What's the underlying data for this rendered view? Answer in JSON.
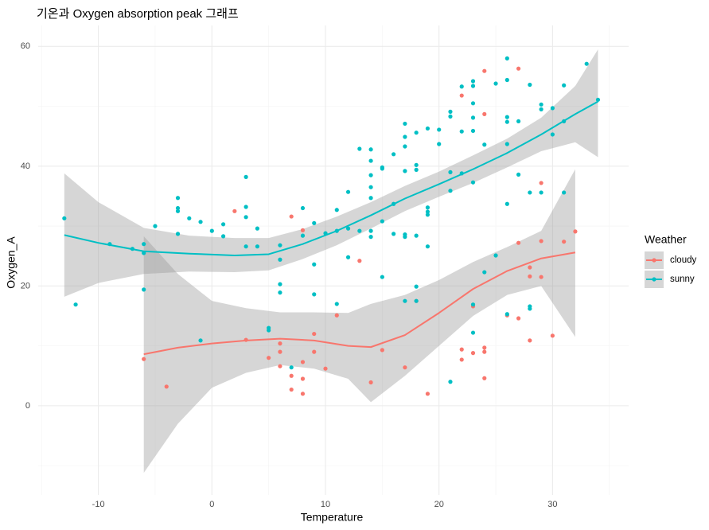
{
  "chart_data": {
    "type": "scatter",
    "title": "기온과 Oxygen absorption peak 그래프",
    "x_label": "Temperature",
    "y_label": "Oxygen_A",
    "legend_title": "Weather",
    "legend_position": "right",
    "grid": true,
    "xlim": [
      -15.3,
      36.7
    ],
    "ylim": [
      -14.9,
      63.5
    ],
    "xticks": [
      -10,
      0,
      10,
      20,
      30
    ],
    "yticks": [
      0,
      20,
      40,
      60
    ],
    "x_minor_ticks": [
      -15,
      -5,
      5,
      15,
      25,
      35
    ],
    "y_minor_ticks": [
      -10,
      10,
      30,
      50
    ],
    "band_color": "#999999",
    "series": [
      {
        "name": "cloudy",
        "color": "#F8766D",
        "x": [
          -6,
          -4,
          2,
          3,
          5,
          6,
          6,
          6,
          7,
          7,
          7,
          8,
          8,
          8,
          8,
          9,
          9,
          10,
          11,
          13,
          14,
          15,
          17,
          18,
          19,
          22,
          22,
          22,
          23,
          23,
          24,
          24,
          24,
          24,
          24,
          26,
          27,
          27,
          27,
          28,
          28,
          28,
          29,
          29,
          29,
          30,
          31,
          32
        ],
        "values": [
          7.8,
          3.2,
          32.5,
          11,
          8,
          10.4,
          9,
          6.6,
          31.6,
          5,
          2.7,
          29.3,
          7.3,
          4.5,
          2,
          12,
          9,
          6.2,
          15.1,
          24.2,
          3.9,
          9.3,
          6.4,
          17.5,
          2,
          51.8,
          9.4,
          7.7,
          16.6,
          8.8,
          55.9,
          48.7,
          9.7,
          9,
          4.6,
          15.1,
          56.3,
          27.2,
          14.6,
          23.1,
          21.6,
          10.9,
          37.2,
          27.5,
          21.5,
          11.7,
          27.4,
          29.1
        ]
      },
      {
        "name": "sunny",
        "color": "#00BFC4",
        "x": [
          -13,
          -12,
          -9,
          -7,
          -6,
          -6,
          -6,
          -5,
          -3,
          -3,
          -3,
          -3,
          -2,
          -1,
          -1,
          0,
          1,
          1,
          3,
          3,
          3,
          3,
          4,
          4,
          5,
          5,
          6,
          6,
          6,
          6,
          7,
          8,
          8,
          9,
          9,
          9,
          10,
          11,
          11,
          11,
          12,
          12,
          12,
          13,
          13,
          14,
          14,
          14,
          14,
          14,
          14,
          14,
          15,
          15,
          15,
          15,
          16,
          16,
          16,
          17,
          17,
          17,
          17,
          17,
          17,
          17,
          18,
          18,
          18,
          18,
          18,
          18,
          19,
          19,
          19,
          19,
          19,
          20,
          20,
          21,
          21,
          21,
          21,
          21,
          22,
          22,
          22,
          23,
          23,
          23,
          23,
          23,
          23,
          23,
          23,
          24,
          24,
          25,
          25,
          26,
          26,
          26,
          26,
          26,
          26,
          26,
          27,
          27,
          28,
          28,
          28,
          28,
          29,
          29,
          29,
          30,
          30,
          31,
          31,
          31,
          33,
          34
        ],
        "values": [
          31.3,
          16.9,
          27,
          26.2,
          27,
          25.5,
          19.4,
          30,
          34.7,
          33,
          32.5,
          28.7,
          31.3,
          30.7,
          10.9,
          29.2,
          30.3,
          28.3,
          38.2,
          33.2,
          31.5,
          26.6,
          29.6,
          26.6,
          13,
          12.6,
          26.8,
          20.3,
          18.9,
          24.4,
          6.4,
          33,
          28.4,
          30.5,
          23.6,
          18.6,
          28.8,
          32.7,
          29.2,
          17,
          35.7,
          29.6,
          24.8,
          42.9,
          29.2,
          42.8,
          40.9,
          38.5,
          36.5,
          34.7,
          29.2,
          28.2,
          39.8,
          39.6,
          30.8,
          21.5,
          42,
          33.7,
          28.7,
          47.1,
          44.9,
          43.3,
          39.2,
          28.6,
          28.2,
          17.5,
          45.6,
          40.2,
          39.4,
          28.4,
          19.9,
          17.5,
          46.3,
          33.1,
          32.4,
          31.9,
          26.6,
          46.1,
          43.7,
          49.1,
          48.3,
          39,
          35.9,
          4,
          53.3,
          45.8,
          38.8,
          54.2,
          53.4,
          50.5,
          48.1,
          45.9,
          37.3,
          16.9,
          12.2,
          43.6,
          22.3,
          53.8,
          25.1,
          58,
          54.4,
          48.2,
          47.4,
          43.7,
          33.7,
          15.3,
          47.5,
          38.6,
          53.6,
          35.6,
          16.6,
          16.2,
          50.3,
          49.5,
          35.6,
          49.7,
          45.3,
          53.5,
          47.5,
          35.6,
          57.1,
          51.1
        ]
      }
    ],
    "smooth": [
      {
        "x": [
          -6,
          -3,
          0,
          3,
          6,
          9,
          12,
          14,
          17,
          20,
          23,
          26,
          29,
          32
        ],
        "values": [
          8.6,
          9.7,
          10.4,
          10.9,
          11.2,
          10.9,
          10,
          9.8,
          11.8,
          15.5,
          19.5,
          22.5,
          24.6,
          25.6
        ],
        "lower": [
          -11.2,
          -3,
          3,
          5.5,
          6.8,
          6.2,
          4.5,
          0.6,
          5,
          10,
          15,
          18.5,
          20,
          11.5
        ],
        "upper": [
          28.3,
          22,
          17.5,
          16.3,
          15.6,
          15.6,
          15.5,
          17,
          18.5,
          21,
          24,
          26.5,
          29.2,
          39.5
        ]
      },
      {
        "x": [
          -13,
          -10,
          -6,
          -2,
          2,
          5,
          8,
          11,
          14,
          17,
          20,
          23,
          26,
          29,
          32,
          34
        ],
        "values": [
          28.5,
          27.2,
          25.8,
          25.4,
          25.1,
          25.3,
          27,
          29.2,
          31.8,
          34.6,
          37,
          39.5,
          42.2,
          45.3,
          48.7,
          50.8
        ],
        "lower": [
          18.2,
          20.5,
          22,
          22.4,
          22.3,
          22.6,
          24.5,
          26.8,
          29.6,
          32.5,
          34.9,
          37.2,
          39.8,
          42.5,
          44,
          41.5
        ],
        "upper": [
          38.8,
          34,
          29.7,
          28.4,
          28,
          28,
          29.5,
          31.6,
          34,
          36.7,
          39.1,
          41.8,
          44.6,
          48.1,
          53.4,
          59.5
        ]
      }
    ]
  }
}
